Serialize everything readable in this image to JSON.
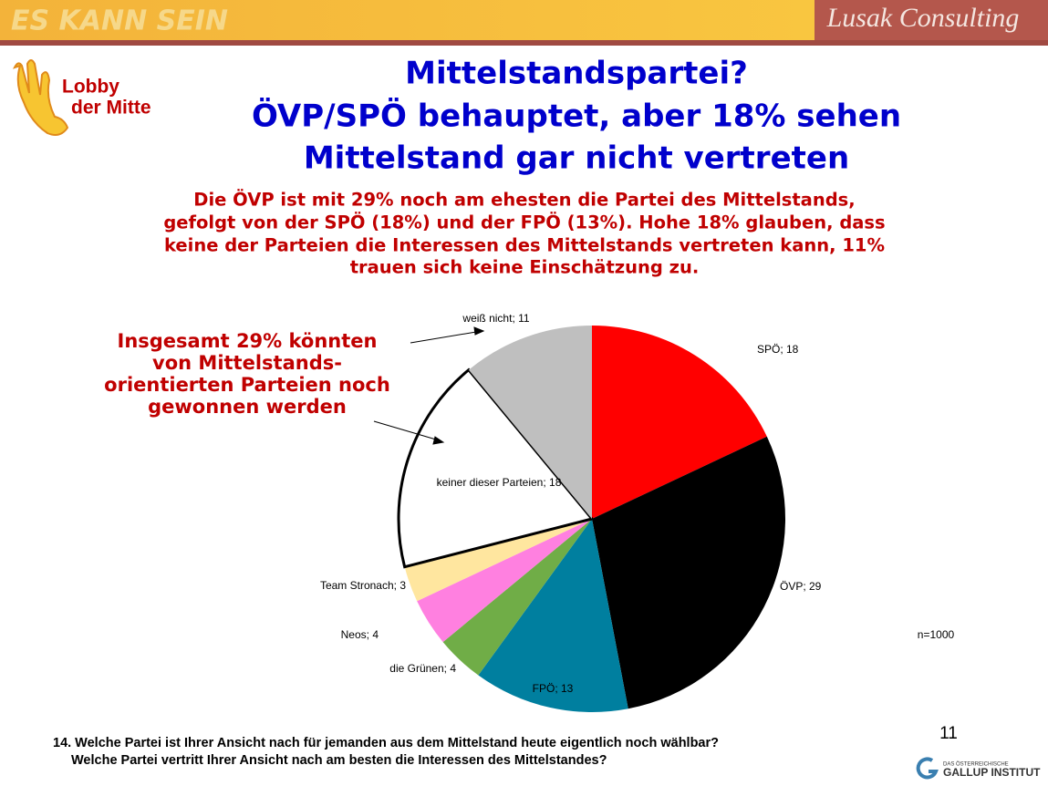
{
  "header": {
    "left_logo": "ES KANN SEIN",
    "right_logo": "Lusak Consulting"
  },
  "logo": {
    "lines": [
      "Lobby",
      "der Mitte"
    ]
  },
  "chart_data": {
    "type": "pie",
    "title": [
      "Mittelstandspartei?",
      "ÖVP/SPÖ behauptet, aber 18% sehen",
      "Mittelstand gar nicht vertreten"
    ],
    "subtitle": [
      "Die ÖVP ist mit 29% noch am ehesten die Partei des Mittelstands,",
      "gefolgt von der SPÖ (18%) und der FPÖ (13%). Hohe 18% glauben, dass",
      "keine der Parteien die Interessen des Mittelstands vertreten kann, 11%",
      "trauen sich keine Einschätzung zu."
    ],
    "annotation": [
      "Insgesamt 29% könnten",
      "von Mittelstands-",
      "orientierten Parteien noch",
      "gewonnen werden"
    ],
    "values": [
      18,
      29,
      13,
      4,
      4,
      3,
      18,
      11
    ],
    "value_labels": [
      "SPÖ; 18",
      "ÖVP; 29",
      "FPÖ; 13",
      "die Grünen; 4",
      "Neos; 4",
      "Team Stronach; 3",
      "keiner dieser Parteien; 18",
      "weiß nicht; 11"
    ],
    "colors": [
      "#ff0000",
      "#000000",
      "#007f9f",
      "#70ad47",
      "#ff80e0",
      "#ffe69f",
      "#ffffff",
      "#bfbfbf"
    ],
    "note": "n=1000"
  },
  "footer": {
    "question": [
      "14. Welche Partei ist Ihrer Ansicht nach für jemanden aus dem Mittelstand heute eigentlich noch wählbar?",
      "Welche Partei vertritt Ihrer Ansicht nach am besten die Interessen des Mittelstandes?"
    ],
    "page": "11",
    "brand": [
      "DAS ÖSTERREICHISCHE",
      "GALLUP INSTITUT"
    ]
  }
}
